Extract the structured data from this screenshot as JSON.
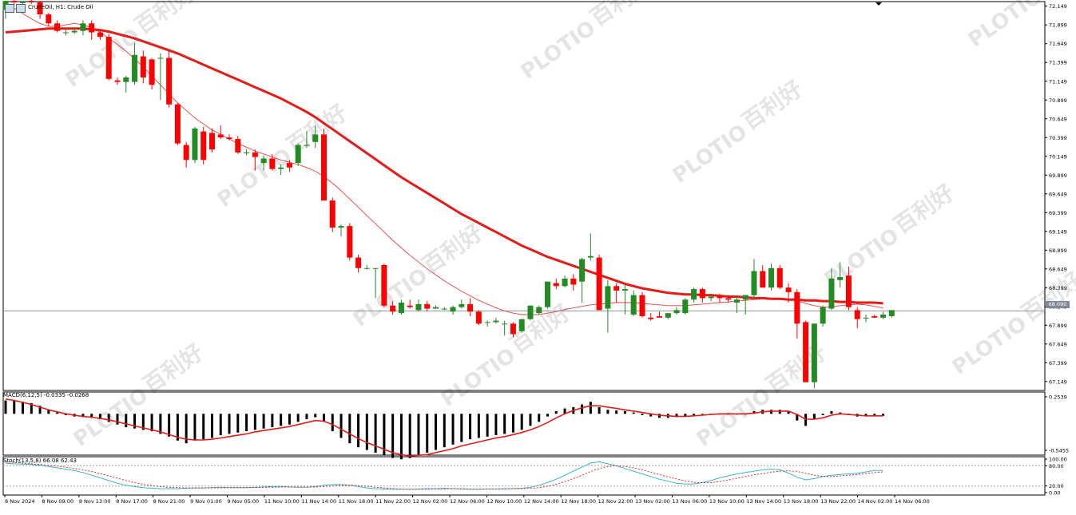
{
  "window": {
    "symbol_title": "CrudeOil, H1:  Crude Oil",
    "current_price": "68.090"
  },
  "indicators": {
    "macd_label": "MACD(6,12,5) -0.0335 -0.0268",
    "stoch_label": "Stoch(13,5,8) 66.08 62.43"
  },
  "watermark": {
    "brand": "PLOTIO",
    "cn": "百利好"
  },
  "colors": {
    "up": "#228b22",
    "down": "#ff0000",
    "ma_thick": "#e41b17",
    "ma_thin": "#ef3f3f",
    "macd_signal": "#e41b17",
    "stoch_main": "#3ab5c8",
    "stoch_signal": "#e41b17",
    "grid": "#c0c0c0"
  },
  "icons": [
    "chart-window-icon",
    "chart-window-icon-2"
  ],
  "chart_data": {
    "type": "candlestick",
    "timeframe": "H1",
    "price_axis_ticks": [
      "72.149",
      "71.899",
      "71.649",
      "71.399",
      "71.149",
      "70.899",
      "70.649",
      "70.399",
      "70.149",
      "69.899",
      "69.649",
      "69.399",
      "69.149",
      "68.899",
      "68.649",
      "68.399",
      "68.149",
      "67.899",
      "67.649",
      "67.399",
      "67.149"
    ],
    "macd_axis_ticks": [
      "0.2539",
      "-0.5455"
    ],
    "stoch_axis_ticks": [
      "100.00",
      "80.00",
      "20.00",
      "0.00"
    ],
    "time_axis_labels": [
      "8 Nov 2024",
      "8 Nov 09:00",
      "8 Nov 13:00",
      "8 Nov 17:00",
      "8 Nov 21:00",
      "9 Nov 01:00",
      "9 Nov 05:00",
      "11 Nov 10:00",
      "11 Nov 14:00",
      "11 Nov 18:00",
      "11 Nov 22:00",
      "12 Nov 02:00",
      "12 Nov 06:00",
      "12 Nov 10:00",
      "12 Nov 14:00",
      "12 Nov 18:00",
      "12 Nov 22:00",
      "13 Nov 02:00",
      "13 Nov 06:00",
      "13 Nov 10:00",
      "13 Nov 14:00",
      "13 Nov 18:00",
      "13 Nov 22:00",
      "14 Nov 02:00",
      "14 Nov 06:00"
    ],
    "ohlc": [
      [
        72.1,
        72.22,
        71.98,
        72.22
      ],
      [
        72.22,
        72.26,
        72.16,
        72.2
      ],
      [
        72.2,
        72.22,
        72.16,
        72.2
      ],
      [
        72.22,
        72.26,
        72.18,
        72.2
      ],
      [
        72.2,
        72.22,
        71.98,
        72.04
      ],
      [
        72.04,
        72.06,
        71.88,
        71.92
      ],
      [
        71.92,
        71.96,
        71.8,
        71.82
      ],
      [
        71.8,
        71.84,
        71.76,
        71.8
      ],
      [
        71.8,
        71.86,
        71.78,
        71.82
      ],
      [
        71.82,
        71.96,
        71.76,
        71.92
      ],
      [
        71.92,
        71.96,
        71.7,
        71.8
      ],
      [
        71.8,
        71.84,
        71.7,
        71.74
      ],
      [
        71.74,
        71.78,
        71.16,
        71.18
      ],
      [
        71.16,
        71.2,
        71.1,
        71.14
      ],
      [
        71.14,
        71.22,
        71.0,
        71.2
      ],
      [
        71.14,
        71.66,
        71.1,
        71.5
      ],
      [
        71.48,
        71.56,
        71.12,
        71.2
      ],
      [
        71.44,
        71.46,
        71.04,
        71.1
      ],
      [
        71.46,
        71.52,
        70.9,
        71.46
      ],
      [
        71.46,
        71.56,
        70.8,
        70.84
      ],
      [
        70.84,
        70.86,
        70.3,
        70.32
      ],
      [
        70.3,
        70.34,
        70.0,
        70.1
      ],
      [
        70.1,
        70.54,
        70.06,
        70.52
      ],
      [
        70.48,
        70.54,
        70.04,
        70.1
      ],
      [
        70.46,
        70.52,
        70.2,
        70.24
      ],
      [
        70.44,
        70.56,
        70.38,
        70.4
      ],
      [
        70.4,
        70.44,
        70.36,
        70.38
      ],
      [
        70.38,
        70.42,
        70.18,
        70.2
      ],
      [
        70.2,
        70.24,
        70.16,
        70.2
      ],
      [
        70.2,
        70.24,
        69.96,
        70.14
      ],
      [
        70.06,
        70.16,
        69.96,
        70.12
      ],
      [
        70.12,
        70.18,
        69.96,
        69.98
      ],
      [
        69.98,
        70.04,
        69.9,
        70.0
      ],
      [
        70.06,
        70.1,
        69.94,
        70.0
      ],
      [
        70.06,
        70.32,
        70.02,
        70.3
      ],
      [
        70.3,
        70.48,
        70.26,
        70.3
      ],
      [
        70.34,
        70.56,
        70.26,
        70.44
      ],
      [
        70.44,
        70.52,
        69.56,
        69.56
      ],
      [
        69.56,
        69.6,
        69.14,
        69.2
      ],
      [
        69.2,
        69.24,
        69.08,
        69.22
      ],
      [
        69.22,
        69.26,
        68.76,
        68.8
      ],
      [
        68.8,
        68.84,
        68.6,
        68.66
      ],
      [
        68.66,
        68.7,
        68.64,
        68.66
      ],
      [
        68.66,
        68.66,
        68.26,
        68.66
      ],
      [
        68.7,
        68.72,
        68.14,
        68.16
      ],
      [
        68.16,
        68.22,
        68.04,
        68.08
      ],
      [
        68.06,
        68.24,
        68.04,
        68.2
      ],
      [
        68.16,
        68.24,
        68.12,
        68.14
      ],
      [
        68.1,
        68.24,
        68.08,
        68.18
      ],
      [
        68.18,
        68.22,
        68.08,
        68.12
      ],
      [
        68.12,
        68.16,
        68.12,
        68.14
      ],
      [
        68.12,
        68.14,
        68.1,
        68.12
      ],
      [
        68.08,
        68.16,
        68.04,
        68.14
      ],
      [
        68.14,
        68.24,
        68.12,
        68.18
      ],
      [
        68.18,
        68.26,
        68.02,
        68.08
      ],
      [
        68.08,
        68.1,
        67.9,
        67.92
      ],
      [
        67.94,
        67.96,
        67.88,
        67.94
      ],
      [
        67.94,
        68.0,
        67.92,
        67.96
      ],
      [
        67.92,
        67.96,
        67.76,
        67.92
      ],
      [
        67.92,
        67.94,
        67.74,
        67.78
      ],
      [
        67.82,
        67.98,
        67.8,
        67.98
      ],
      [
        67.98,
        68.16,
        67.96,
        68.16
      ],
      [
        68.06,
        68.16,
        68.04,
        68.14
      ],
      [
        68.14,
        68.48,
        68.12,
        68.48
      ],
      [
        68.46,
        68.52,
        68.38,
        68.42
      ],
      [
        68.42,
        68.56,
        68.4,
        68.52
      ],
      [
        68.52,
        68.58,
        68.36,
        68.44
      ],
      [
        68.48,
        68.8,
        68.2,
        68.78
      ],
      [
        68.8,
        69.12,
        68.76,
        68.82
      ],
      [
        68.8,
        68.84,
        68.1,
        68.1
      ],
      [
        68.12,
        68.5,
        67.8,
        68.42
      ],
      [
        68.42,
        68.46,
        68.2,
        68.36
      ],
      [
        68.36,
        68.44,
        68.04,
        68.38
      ],
      [
        68.04,
        68.36,
        68.02,
        68.3
      ],
      [
        68.3,
        68.34,
        68.0,
        68.02
      ],
      [
        68.0,
        68.06,
        67.96,
        67.98
      ],
      [
        68.02,
        68.08,
        68.0,
        68.0
      ],
      [
        68.0,
        68.04,
        67.98,
        68.06
      ],
      [
        68.06,
        68.14,
        68.04,
        68.1
      ],
      [
        68.06,
        68.26,
        68.04,
        68.24
      ],
      [
        68.24,
        68.4,
        68.2,
        68.38
      ],
      [
        68.38,
        68.4,
        68.2,
        68.26
      ],
      [
        68.26,
        68.32,
        68.22,
        68.28
      ],
      [
        68.28,
        68.32,
        68.2,
        68.26
      ],
      [
        68.26,
        68.3,
        68.2,
        68.24
      ],
      [
        68.2,
        68.28,
        68.06,
        68.24
      ],
      [
        68.24,
        68.28,
        68.04,
        68.3
      ],
      [
        68.3,
        68.78,
        68.24,
        68.62
      ],
      [
        68.62,
        68.7,
        68.4,
        68.4
      ],
      [
        68.4,
        68.72,
        68.36,
        68.66
      ],
      [
        68.66,
        68.7,
        68.38,
        68.4
      ],
      [
        68.4,
        68.46,
        68.2,
        68.34
      ],
      [
        68.34,
        68.38,
        67.72,
        67.92
      ],
      [
        67.94,
        67.96,
        67.14,
        67.14
      ],
      [
        67.14,
        67.92,
        67.06,
        67.92
      ],
      [
        67.92,
        68.16,
        67.88,
        68.14
      ],
      [
        68.12,
        68.66,
        68.1,
        68.52
      ],
      [
        68.5,
        68.74,
        68.4,
        68.54
      ],
      [
        68.56,
        68.68,
        68.1,
        68.14
      ],
      [
        68.1,
        68.14,
        67.86,
        67.98
      ],
      [
        68.0,
        68.04,
        67.94,
        68.0
      ],
      [
        68.02,
        68.04,
        68.0,
        68.0
      ],
      [
        68.0,
        68.08,
        67.98,
        68.04
      ],
      [
        68.02,
        68.1,
        68.0,
        68.1
      ]
    ],
    "ma_fast": [
      72.16,
      72.12,
      72.05,
      71.98,
      71.92,
      71.88,
      71.88,
      71.9,
      71.92,
      71.9,
      71.86,
      71.8,
      71.72,
      71.64,
      71.55,
      71.45,
      71.34,
      71.22,
      71.1,
      70.98,
      70.86,
      70.76,
      70.66,
      70.58,
      70.5,
      70.44,
      70.38,
      70.32,
      70.27,
      70.22,
      70.18,
      70.14,
      70.1,
      70.07,
      70.04,
      70.0,
      69.95,
      69.88,
      69.79,
      69.69,
      69.58,
      69.47,
      69.36,
      69.25,
      69.14,
      69.03,
      68.93,
      68.83,
      68.74,
      68.65,
      68.57,
      68.49,
      68.42,
      68.35,
      68.29,
      68.23,
      68.18,
      68.13,
      68.09,
      68.06,
      68.04,
      68.04,
      68.04,
      68.06,
      68.08,
      68.11,
      68.13,
      68.15,
      68.17,
      68.18,
      68.19,
      68.2,
      68.2,
      68.2,
      68.19,
      68.18,
      68.17,
      68.16,
      68.16,
      68.16,
      68.17,
      68.18,
      68.19,
      68.2,
      68.21,
      68.22,
      68.23,
      68.24,
      68.25,
      68.26,
      68.26,
      68.25,
      68.22,
      68.19,
      68.16,
      68.14,
      68.14,
      68.16,
      68.17,
      68.18,
      68.17,
      68.15,
      68.13
    ],
    "ma_slow": [
      71.8,
      71.81,
      71.82,
      71.83,
      71.84,
      71.85,
      71.85,
      71.85,
      71.85,
      71.85,
      71.84,
      71.83,
      71.81,
      71.78,
      71.75,
      71.72,
      71.68,
      71.64,
      71.6,
      71.56,
      71.52,
      71.47,
      71.42,
      71.37,
      71.32,
      71.27,
      71.22,
      71.17,
      71.12,
      71.07,
      71.02,
      70.97,
      70.92,
      70.86,
      70.8,
      70.74,
      70.67,
      70.59,
      70.51,
      70.43,
      70.35,
      70.27,
      70.19,
      70.11,
      70.03,
      69.95,
      69.87,
      69.8,
      69.73,
      69.66,
      69.59,
      69.52,
      69.45,
      69.38,
      69.32,
      69.26,
      69.2,
      69.14,
      69.08,
      69.02,
      68.96,
      68.91,
      68.86,
      68.81,
      68.77,
      68.73,
      68.69,
      68.65,
      68.61,
      68.57,
      68.53,
      68.49,
      68.45,
      68.42,
      68.39,
      68.37,
      68.35,
      68.33,
      68.32,
      68.31,
      68.31,
      68.3,
      68.3,
      68.29,
      68.28,
      68.28,
      68.27,
      68.26,
      68.26,
      68.25,
      68.25,
      68.24,
      68.24,
      68.23,
      68.23,
      68.22,
      68.22,
      68.21,
      68.21,
      68.2,
      68.2,
      68.2,
      68.19
    ],
    "macd_hist": [
      0.2,
      0.2,
      0.18,
      0.16,
      0.12,
      0.06,
      0.02,
      -0.02,
      -0.04,
      -0.05,
      -0.06,
      -0.08,
      -0.12,
      -0.16,
      -0.2,
      -0.22,
      -0.24,
      -0.26,
      -0.3,
      -0.34,
      -0.4,
      -0.44,
      -0.4,
      -0.38,
      -0.36,
      -0.32,
      -0.3,
      -0.28,
      -0.26,
      -0.24,
      -0.22,
      -0.2,
      -0.18,
      -0.16,
      -0.12,
      -0.08,
      -0.05,
      -0.12,
      -0.26,
      -0.36,
      -0.44,
      -0.5,
      -0.54,
      -0.58,
      -0.62,
      -0.66,
      -0.68,
      -0.66,
      -0.62,
      -0.58,
      -0.54,
      -0.5,
      -0.46,
      -0.42,
      -0.38,
      -0.36,
      -0.34,
      -0.32,
      -0.3,
      -0.28,
      -0.24,
      -0.18,
      -0.12,
      -0.04,
      0.04,
      0.08,
      0.1,
      0.14,
      0.18,
      0.1,
      0.06,
      0.05,
      0.04,
      0.02,
      -0.02,
      -0.04,
      -0.06,
      -0.06,
      -0.05,
      -0.04,
      -0.02,
      -0.01,
      0.0,
      0.0,
      0.0,
      0.0,
      0.0,
      0.04,
      0.06,
      0.06,
      0.06,
      0.04,
      -0.1,
      -0.18,
      -0.08,
      -0.02,
      0.04,
      0.02,
      -0.02,
      -0.04,
      -0.04,
      -0.03,
      -0.03
    ],
    "macd_signal": [
      0.22,
      0.2,
      0.17,
      0.14,
      0.1,
      0.06,
      0.03,
      0.0,
      -0.02,
      -0.04,
      -0.05,
      -0.07,
      -0.09,
      -0.12,
      -0.15,
      -0.18,
      -0.21,
      -0.24,
      -0.27,
      -0.31,
      -0.35,
      -0.38,
      -0.39,
      -0.39,
      -0.38,
      -0.36,
      -0.34,
      -0.32,
      -0.3,
      -0.27,
      -0.25,
      -0.23,
      -0.21,
      -0.19,
      -0.16,
      -0.13,
      -0.1,
      -0.11,
      -0.16,
      -0.23,
      -0.3,
      -0.37,
      -0.43,
      -0.48,
      -0.53,
      -0.58,
      -0.61,
      -0.63,
      -0.62,
      -0.61,
      -0.58,
      -0.55,
      -0.52,
      -0.48,
      -0.45,
      -0.42,
      -0.39,
      -0.36,
      -0.34,
      -0.31,
      -0.28,
      -0.24,
      -0.19,
      -0.13,
      -0.06,
      0.0,
      0.05,
      0.09,
      0.12,
      0.12,
      0.1,
      0.08,
      0.06,
      0.04,
      0.02,
      0.0,
      -0.02,
      -0.03,
      -0.04,
      -0.04,
      -0.03,
      -0.02,
      -0.01,
      0.0,
      0.0,
      0.0,
      0.0,
      0.01,
      0.03,
      0.04,
      0.04,
      0.04,
      -0.01,
      -0.08,
      -0.08,
      -0.06,
      -0.02,
      0.0,
      -0.01,
      -0.02,
      -0.03,
      -0.03,
      -0.03
    ],
    "stoch_main": [
      88,
      86,
      85,
      84,
      82,
      78,
      74,
      70,
      66,
      60,
      52,
      44,
      36,
      28,
      22,
      18,
      15,
      13,
      12,
      12,
      12,
      13,
      14,
      14,
      15,
      16,
      15,
      15,
      15,
      16,
      17,
      18,
      18,
      17,
      16,
      16,
      18,
      22,
      24,
      24,
      22,
      18,
      14,
      12,
      11,
      10,
      10,
      10,
      11,
      12,
      12,
      13,
      12,
      11,
      10,
      10,
      11,
      11,
      12,
      12,
      13,
      16,
      22,
      30,
      40,
      52,
      64,
      76,
      88,
      92,
      86,
      80,
      72,
      64,
      56,
      48,
      40,
      34,
      28,
      26,
      26,
      30,
      36,
      44,
      50,
      56,
      60,
      64,
      68,
      70,
      68,
      58,
      46,
      38,
      42,
      48,
      52,
      54,
      56,
      58,
      62,
      66,
      66
    ],
    "stoch_signal": [
      92,
      90,
      88,
      86,
      84,
      82,
      79,
      76,
      72,
      68,
      63,
      57,
      50,
      43,
      36,
      30,
      25,
      21,
      18,
      16,
      15,
      14,
      14,
      14,
      14,
      14,
      15,
      15,
      15,
      15,
      16,
      16,
      17,
      17,
      17,
      17,
      17,
      18,
      20,
      22,
      22,
      21,
      19,
      16,
      14,
      12,
      11,
      10,
      10,
      10,
      11,
      11,
      12,
      12,
      11,
      11,
      11,
      11,
      11,
      12,
      12,
      13,
      15,
      19,
      25,
      33,
      42,
      52,
      63,
      72,
      78,
      80,
      78,
      74,
      68,
      61,
      54,
      47,
      41,
      35,
      31,
      29,
      30,
      33,
      38,
      43,
      48,
      53,
      57,
      61,
      64,
      65,
      63,
      58,
      52,
      48,
      48,
      50,
      52,
      54,
      57,
      60,
      62
    ]
  }
}
